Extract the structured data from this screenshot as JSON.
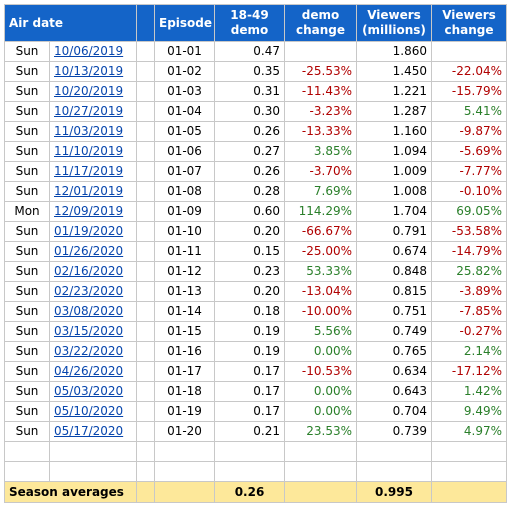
{
  "header": {
    "air_date": "Air date",
    "episode": "Episode",
    "demo_line1": "18-49",
    "demo_line2": "demo",
    "demo_change_line1": "demo",
    "demo_change_line2": "change",
    "viewers_line1": "Viewers",
    "viewers_line2": "(millions)",
    "viewers_change_line1": "Viewers",
    "viewers_change_line2": "change"
  },
  "rows": [
    {
      "day": "Sun",
      "date": "10/06/2019",
      "episode": "01-01",
      "demo": "0.47",
      "demo_change": "",
      "demo_trend": "",
      "viewers": "1.860",
      "viewers_change": "",
      "viewers_trend": ""
    },
    {
      "day": "Sun",
      "date": "10/13/2019",
      "episode": "01-02",
      "demo": "0.35",
      "demo_change": "-25.53%",
      "demo_trend": "neg",
      "viewers": "1.450",
      "viewers_change": "-22.04%",
      "viewers_trend": "neg"
    },
    {
      "day": "Sun",
      "date": "10/20/2019",
      "episode": "01-03",
      "demo": "0.31",
      "demo_change": "-11.43%",
      "demo_trend": "neg",
      "viewers": "1.221",
      "viewers_change": "-15.79%",
      "viewers_trend": "neg"
    },
    {
      "day": "Sun",
      "date": "10/27/2019",
      "episode": "01-04",
      "demo": "0.30",
      "demo_change": "-3.23%",
      "demo_trend": "neg",
      "viewers": "1.287",
      "viewers_change": "5.41%",
      "viewers_trend": "pos"
    },
    {
      "day": "Sun",
      "date": "11/03/2019",
      "episode": "01-05",
      "demo": "0.26",
      "demo_change": "-13.33%",
      "demo_trend": "neg",
      "viewers": "1.160",
      "viewers_change": "-9.87%",
      "viewers_trend": "neg"
    },
    {
      "day": "Sun",
      "date": "11/10/2019",
      "episode": "01-06",
      "demo": "0.27",
      "demo_change": "3.85%",
      "demo_trend": "pos",
      "viewers": "1.094",
      "viewers_change": "-5.69%",
      "viewers_trend": "neg"
    },
    {
      "day": "Sun",
      "date": "11/17/2019",
      "episode": "01-07",
      "demo": "0.26",
      "demo_change": "-3.70%",
      "demo_trend": "neg",
      "viewers": "1.009",
      "viewers_change": "-7.77%",
      "viewers_trend": "neg"
    },
    {
      "day": "Sun",
      "date": "12/01/2019",
      "episode": "01-08",
      "demo": "0.28",
      "demo_change": "7.69%",
      "demo_trend": "pos",
      "viewers": "1.008",
      "viewers_change": "-0.10%",
      "viewers_trend": "neg"
    },
    {
      "day": "Mon",
      "date": "12/09/2019",
      "episode": "01-09",
      "demo": "0.60",
      "demo_change": "114.29%",
      "demo_trend": "pos",
      "viewers": "1.704",
      "viewers_change": "69.05%",
      "viewers_trend": "pos"
    },
    {
      "day": "Sun",
      "date": "01/19/2020",
      "episode": "01-10",
      "demo": "0.20",
      "demo_change": "-66.67%",
      "demo_trend": "neg",
      "viewers": "0.791",
      "viewers_change": "-53.58%",
      "viewers_trend": "neg"
    },
    {
      "day": "Sun",
      "date": "01/26/2020",
      "episode": "01-11",
      "demo": "0.15",
      "demo_change": "-25.00%",
      "demo_trend": "neg",
      "viewers": "0.674",
      "viewers_change": "-14.79%",
      "viewers_trend": "neg"
    },
    {
      "day": "Sun",
      "date": "02/16/2020",
      "episode": "01-12",
      "demo": "0.23",
      "demo_change": "53.33%",
      "demo_trend": "pos",
      "viewers": "0.848",
      "viewers_change": "25.82%",
      "viewers_trend": "pos"
    },
    {
      "day": "Sun",
      "date": "02/23/2020",
      "episode": "01-13",
      "demo": "0.20",
      "demo_change": "-13.04%",
      "demo_trend": "neg",
      "viewers": "0.815",
      "viewers_change": "-3.89%",
      "viewers_trend": "neg"
    },
    {
      "day": "Sun",
      "date": "03/08/2020",
      "episode": "01-14",
      "demo": "0.18",
      "demo_change": "-10.00%",
      "demo_trend": "neg",
      "viewers": "0.751",
      "viewers_change": "-7.85%",
      "viewers_trend": "neg"
    },
    {
      "day": "Sun",
      "date": "03/15/2020",
      "episode": "01-15",
      "demo": "0.19",
      "demo_change": "5.56%",
      "demo_trend": "pos",
      "viewers": "0.749",
      "viewers_change": "-0.27%",
      "viewers_trend": "neg"
    },
    {
      "day": "Sun",
      "date": "03/22/2020",
      "episode": "01-16",
      "demo": "0.19",
      "demo_change": "0.00%",
      "demo_trend": "pos",
      "viewers": "0.765",
      "viewers_change": "2.14%",
      "viewers_trend": "pos"
    },
    {
      "day": "Sun",
      "date": "04/26/2020",
      "episode": "01-17",
      "demo": "0.17",
      "demo_change": "-10.53%",
      "demo_trend": "neg",
      "viewers": "0.634",
      "viewers_change": "-17.12%",
      "viewers_trend": "neg"
    },
    {
      "day": "Sun",
      "date": "05/03/2020",
      "episode": "01-18",
      "demo": "0.17",
      "demo_change": "0.00%",
      "demo_trend": "pos",
      "viewers": "0.643",
      "viewers_change": "1.42%",
      "viewers_trend": "pos"
    },
    {
      "day": "Sun",
      "date": "05/10/2020",
      "episode": "01-19",
      "demo": "0.17",
      "demo_change": "0.00%",
      "demo_trend": "pos",
      "viewers": "0.704",
      "viewers_change": "9.49%",
      "viewers_trend": "pos"
    },
    {
      "day": "Sun",
      "date": "05/17/2020",
      "episode": "01-20",
      "demo": "0.21",
      "demo_change": "23.53%",
      "demo_trend": "pos",
      "viewers": "0.739",
      "viewers_change": "4.97%",
      "viewers_trend": "pos"
    }
  ],
  "averages": {
    "label": "Season averages",
    "demo": "0.26",
    "viewers": "0.995"
  },
  "colors": {
    "header_bg": "#1464c8",
    "negative": "#b00000",
    "positive": "#2a7f2a",
    "average_bg": "#fde89a",
    "link": "#0645ad"
  }
}
